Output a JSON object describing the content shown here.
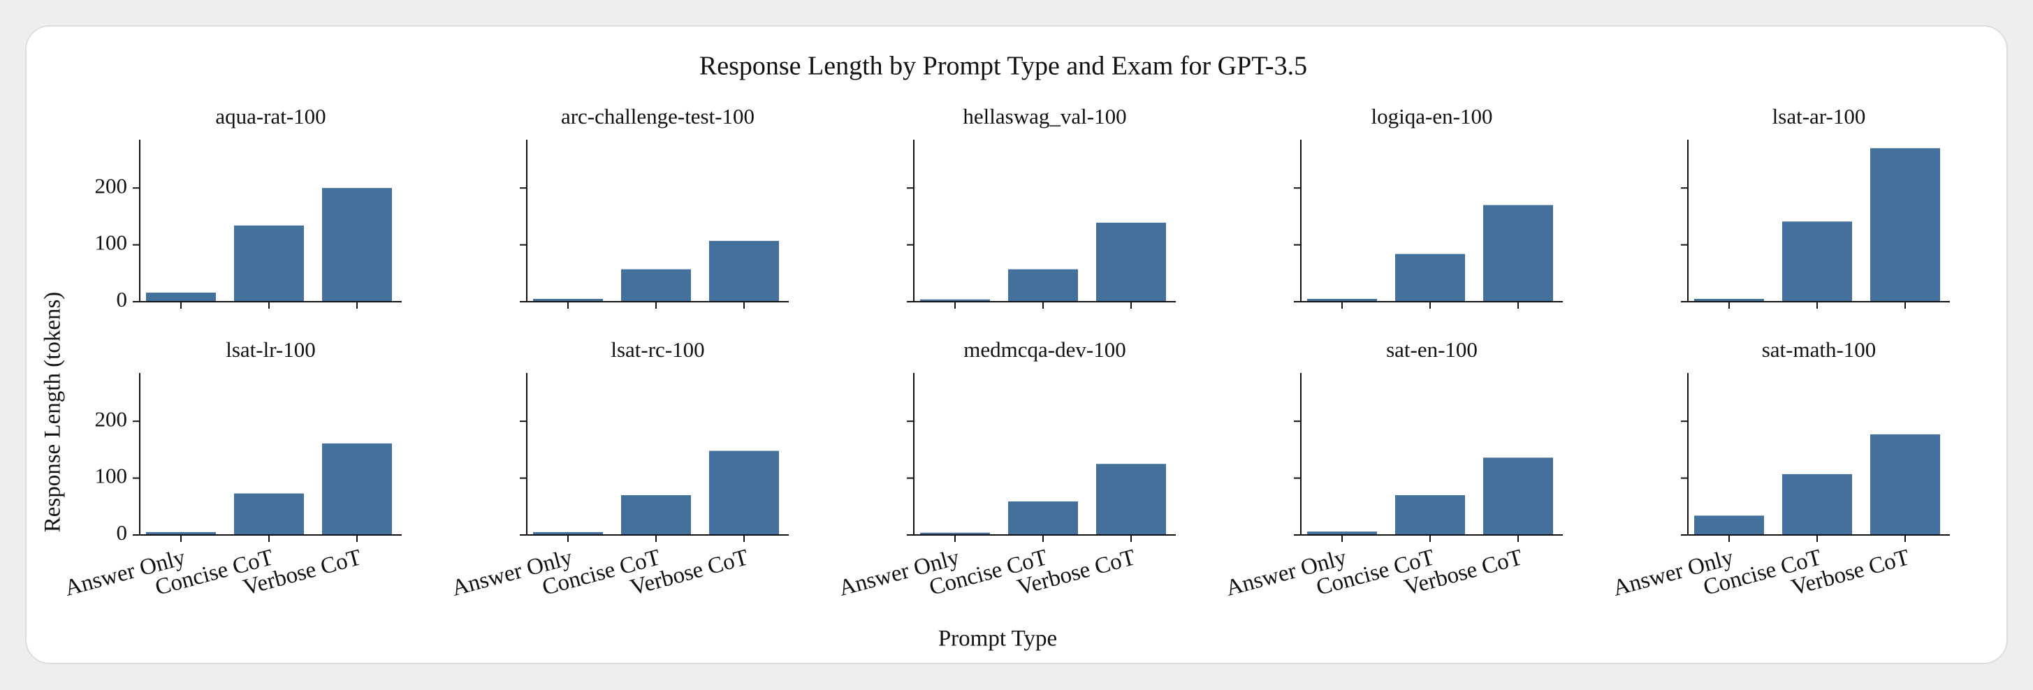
{
  "title": "Response Length by Prompt Type and Exam for GPT-3.5",
  "x_label": "Prompt Type",
  "y_label": "Response Length (tokens)",
  "categories": [
    "Answer Only",
    "Concise CoT",
    "Verbose CoT"
  ],
  "ylim": [
    0,
    285
  ],
  "yticks": [
    0,
    100,
    200
  ],
  "chart_data": [
    {
      "type": "bar",
      "title": "aqua-rat-100",
      "values": [
        16,
        134,
        200
      ],
      "color": "#44719c"
    },
    {
      "type": "bar",
      "title": "arc-challenge-test-100",
      "values": [
        5,
        57,
        107
      ],
      "color": "#44719c"
    },
    {
      "type": "bar",
      "title": "hellaswag_val-100",
      "values": [
        4,
        57,
        139
      ],
      "color": "#44719c"
    },
    {
      "type": "bar",
      "title": "logiqa-en-100",
      "values": [
        5,
        84,
        170
      ],
      "color": "#44719c"
    },
    {
      "type": "bar",
      "title": "lsat-ar-100",
      "values": [
        5,
        141,
        270
      ],
      "color": "#44719c"
    },
    {
      "type": "bar",
      "title": "lsat-lr-100",
      "values": [
        5,
        73,
        161
      ],
      "color": "#44719c"
    },
    {
      "type": "bar",
      "title": "lsat-rc-100",
      "values": [
        5,
        70,
        148
      ],
      "color": "#44719c"
    },
    {
      "type": "bar",
      "title": "medmcqa-dev-100",
      "values": [
        4,
        59,
        125
      ],
      "color": "#44719c"
    },
    {
      "type": "bar",
      "title": "sat-en-100",
      "values": [
        6,
        70,
        136
      ],
      "color": "#44719c"
    },
    {
      "type": "bar",
      "title": "sat-math-100",
      "values": [
        34,
        107,
        177
      ],
      "color": "#44719c"
    }
  ]
}
